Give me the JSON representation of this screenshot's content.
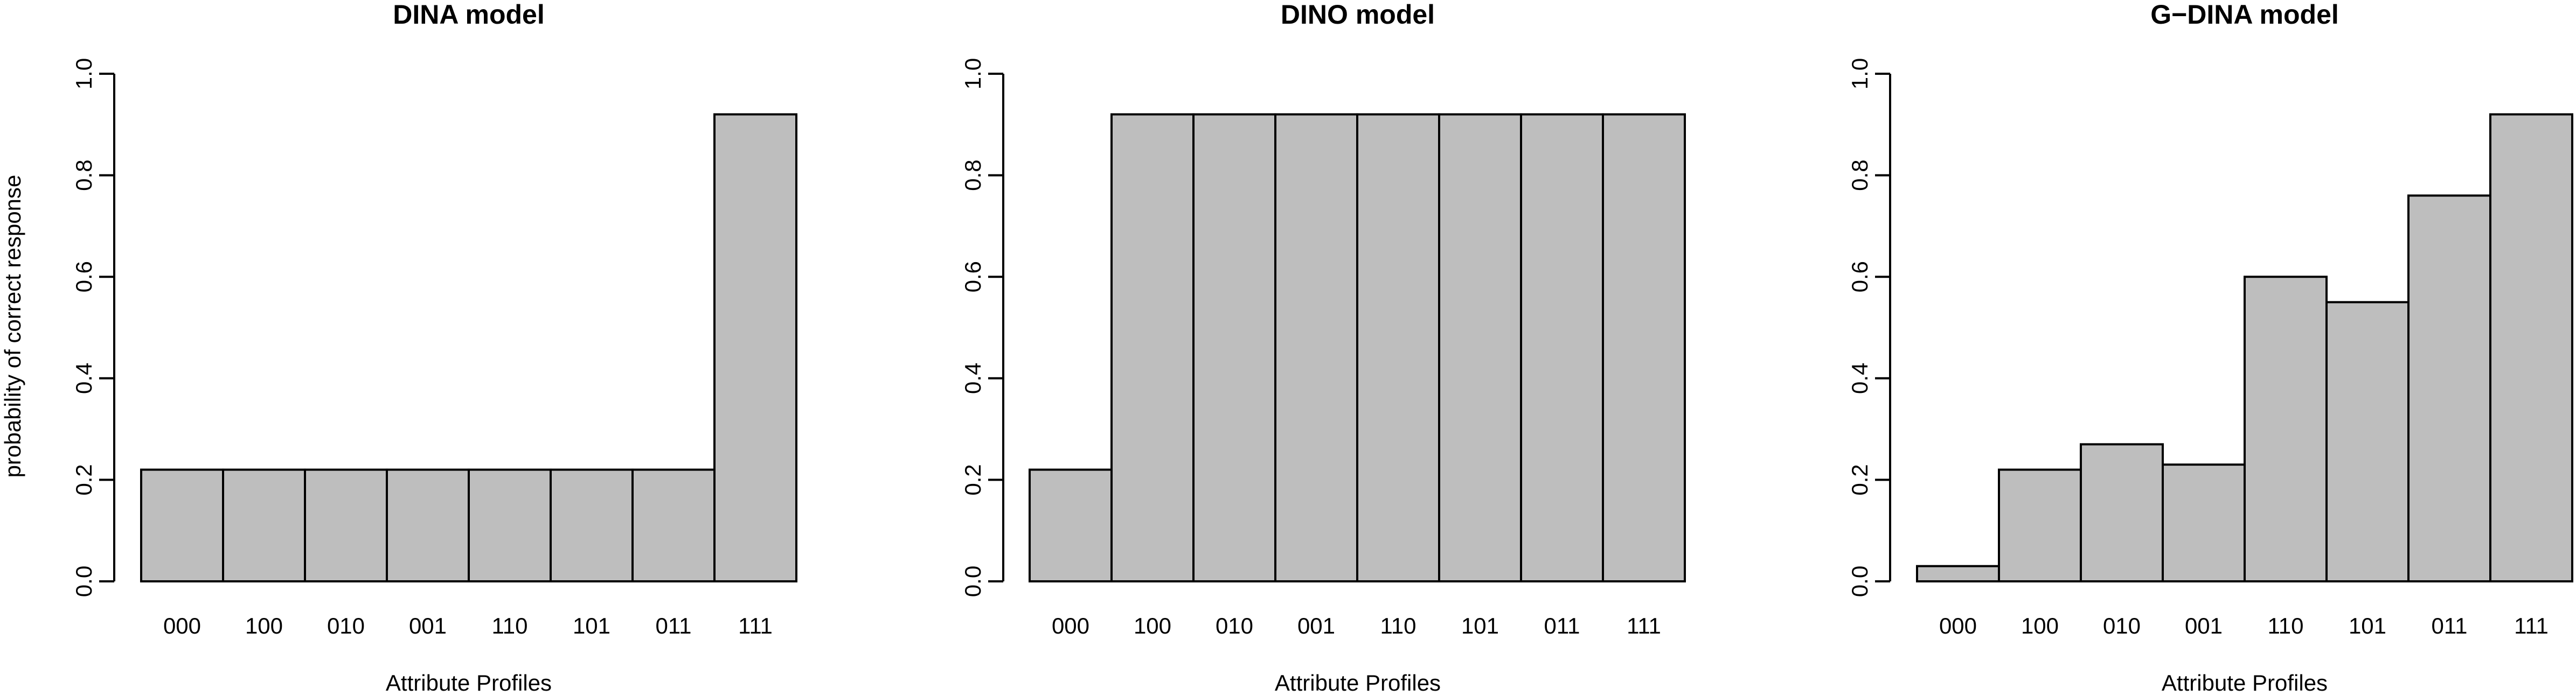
{
  "figure": {
    "bar_color": "#bebebe",
    "border_color": "#000000",
    "background": "#ffffff"
  },
  "chart_data": [
    {
      "type": "bar",
      "title": "DINA model",
      "xlabel": "Attribute Profiles",
      "ylabel": "probability of correct response",
      "categories": [
        "000",
        "100",
        "010",
        "001",
        "110",
        "101",
        "011",
        "111"
      ],
      "values": [
        0.22,
        0.22,
        0.22,
        0.22,
        0.22,
        0.22,
        0.22,
        0.92
      ],
      "ylim": [
        0,
        1
      ],
      "yticks": [
        "0.0",
        "0.2",
        "0.4",
        "0.6",
        "0.8",
        "1.0"
      ],
      "grid": false
    },
    {
      "type": "bar",
      "title": "DINO model",
      "xlabel": "Attribute Profiles",
      "ylabel": "",
      "categories": [
        "000",
        "100",
        "010",
        "001",
        "110",
        "101",
        "011",
        "111"
      ],
      "values": [
        0.22,
        0.92,
        0.92,
        0.92,
        0.92,
        0.92,
        0.92,
        0.92
      ],
      "ylim": [
        0,
        1
      ],
      "yticks": [
        "0.0",
        "0.2",
        "0.4",
        "0.6",
        "0.8",
        "1.0"
      ],
      "grid": false
    },
    {
      "type": "bar",
      "title": "G−DINA model",
      "xlabel": "Attribute Profiles",
      "ylabel": "",
      "categories": [
        "000",
        "100",
        "010",
        "001",
        "110",
        "101",
        "011",
        "111"
      ],
      "values": [
        0.03,
        0.22,
        0.27,
        0.23,
        0.6,
        0.55,
        0.76,
        0.92
      ],
      "ylim": [
        0,
        1
      ],
      "yticks": [
        "0.0",
        "0.2",
        "0.4",
        "0.6",
        "0.8",
        "1.0"
      ],
      "grid": false
    }
  ]
}
